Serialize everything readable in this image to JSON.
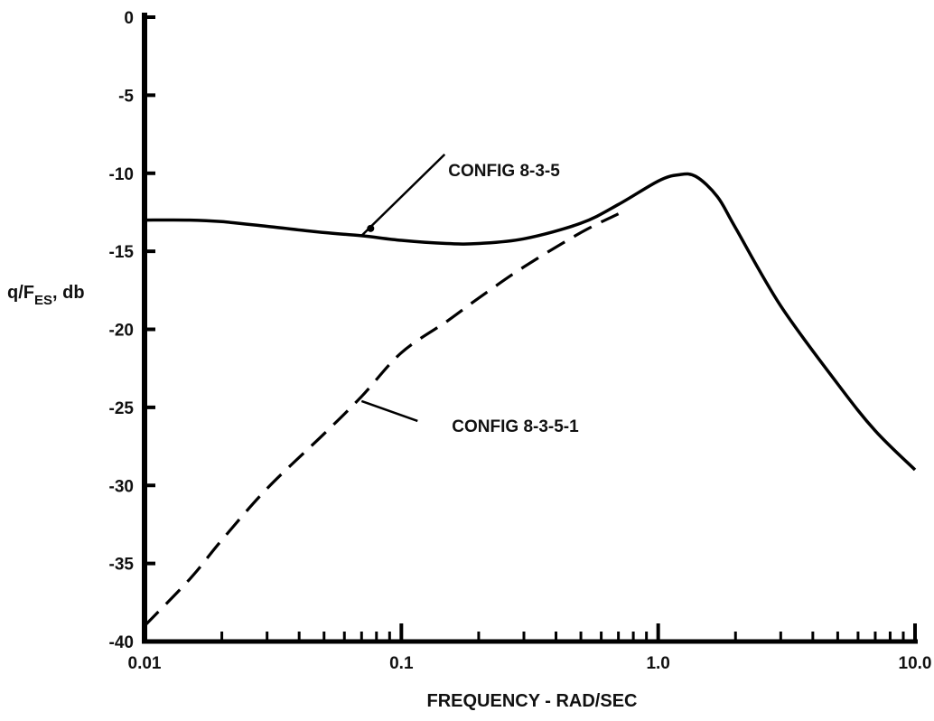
{
  "chart_data": {
    "type": "line",
    "x_scale": "log",
    "xlim": [
      0.01,
      10.0
    ],
    "ylim": [
      -40,
      0
    ],
    "grid": false,
    "xlabel": "FREQUENCY - RAD/SEC",
    "ylabel": {
      "main": "q/F",
      "subscript": "ES",
      "suffix": ", db"
    },
    "x_tick_labels": [
      "0.01",
      "0.1",
      "1.0",
      "10.0"
    ],
    "x_ticks": [
      0.01,
      0.1,
      1.0,
      10.0
    ],
    "y_tick_labels": [
      "0",
      "-5",
      "-10",
      "-15",
      "-20",
      "-25",
      "-30",
      "-35",
      "-40"
    ],
    "y_ticks": [
      0,
      -5,
      -10,
      -15,
      -20,
      -25,
      -30,
      -35,
      -40
    ],
    "series": [
      {
        "name": "CONFIG 8-3-5",
        "style": "solid",
        "color": "#000000",
        "x": [
          0.01,
          0.015,
          0.02,
          0.03,
          0.05,
          0.07,
          0.1,
          0.15,
          0.2,
          0.3,
          0.5,
          0.7,
          1.0,
          1.2,
          1.4,
          1.7,
          2.0,
          3.0,
          5.0,
          7.0,
          10.0
        ],
        "y": [
          -13.0,
          -13.0,
          -13.1,
          -13.4,
          -13.8,
          -14.0,
          -14.3,
          -14.5,
          -14.5,
          -14.2,
          -13.2,
          -12.0,
          -10.5,
          -10.1,
          -10.2,
          -11.5,
          -13.5,
          -18.5,
          -23.5,
          -26.5,
          -29.0
        ]
      },
      {
        "name": "CONFIG 8-3-5-1",
        "style": "dashed",
        "color": "#000000",
        "x": [
          0.01,
          0.015,
          0.02,
          0.03,
          0.05,
          0.07,
          0.1,
          0.15,
          0.2,
          0.3,
          0.5,
          0.7
        ],
        "y": [
          -39.0,
          -36.0,
          -33.5,
          -30.2,
          -26.7,
          -24.3,
          -21.5,
          -19.5,
          -18.0,
          -16.0,
          -13.8,
          -12.6
        ]
      }
    ],
    "annotations": [
      {
        "text": "CONFIG 8-3-5",
        "series": "CONFIG 8-3-5",
        "at": [
          0.07,
          -14.0
        ]
      },
      {
        "text": "CONFIG 8-3-5-1",
        "series": "CONFIG 8-3-5-1",
        "at": [
          0.07,
          -24.6
        ]
      }
    ]
  }
}
